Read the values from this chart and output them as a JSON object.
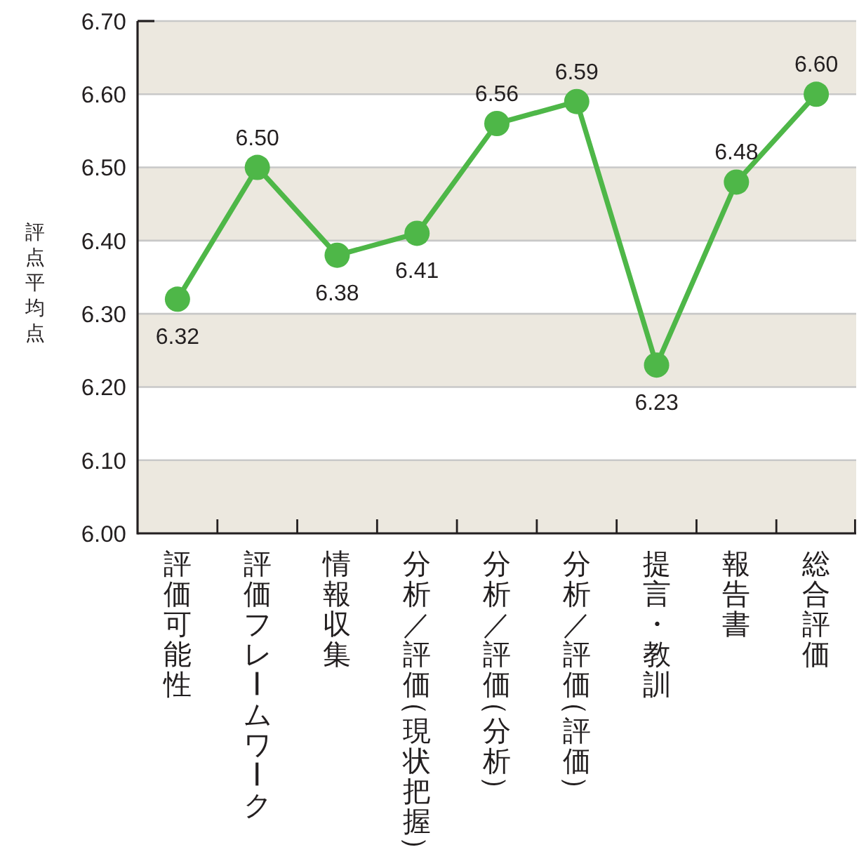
{
  "chart_data": {
    "type": "line",
    "ylabel": "評点平均点",
    "categories": [
      "評価可能性",
      "評価フレームワーク",
      "情報収集",
      "分析／評価（現状把握）",
      "分析／評価（分析）",
      "分析／評価（評価）",
      "提言・教訓",
      "報告書",
      "総合評価"
    ],
    "series": [
      {
        "color": "#4eb748",
        "values": [
          6.32,
          6.5,
          6.38,
          6.41,
          6.56,
          6.59,
          6.23,
          6.48,
          6.6
        ],
        "value_labels": [
          "6.32",
          "6.50",
          "6.38",
          "6.41",
          "6.56",
          "6.59",
          "6.23",
          "6.48",
          "6.60"
        ]
      }
    ],
    "ylim": [
      6.0,
      6.7
    ],
    "yticks": [
      {
        "value": 6.0,
        "label": "6.00"
      },
      {
        "value": 6.1,
        "label": "6.10"
      },
      {
        "value": 6.2,
        "label": "6.20"
      },
      {
        "value": 6.3,
        "label": "6.30"
      },
      {
        "value": 6.4,
        "label": "6.40"
      },
      {
        "value": 6.5,
        "label": "6.50"
      },
      {
        "value": 6.6,
        "label": "6.60"
      },
      {
        "value": 6.7,
        "label": "6.70"
      }
    ],
    "grid": "y",
    "bands": [
      {
        "axis": "y",
        "from": 6.0,
        "to": 6.1,
        "color": "#ece8df"
      },
      {
        "axis": "y",
        "from": 6.2,
        "to": 6.3,
        "color": "#ece8df"
      },
      {
        "axis": "y",
        "from": 6.4,
        "to": 6.5,
        "color": "#ece8df"
      },
      {
        "axis": "y",
        "from": 6.6,
        "to": 6.7,
        "color": "#ece8df"
      }
    ],
    "marker": "circle",
    "line_style": "solid"
  }
}
